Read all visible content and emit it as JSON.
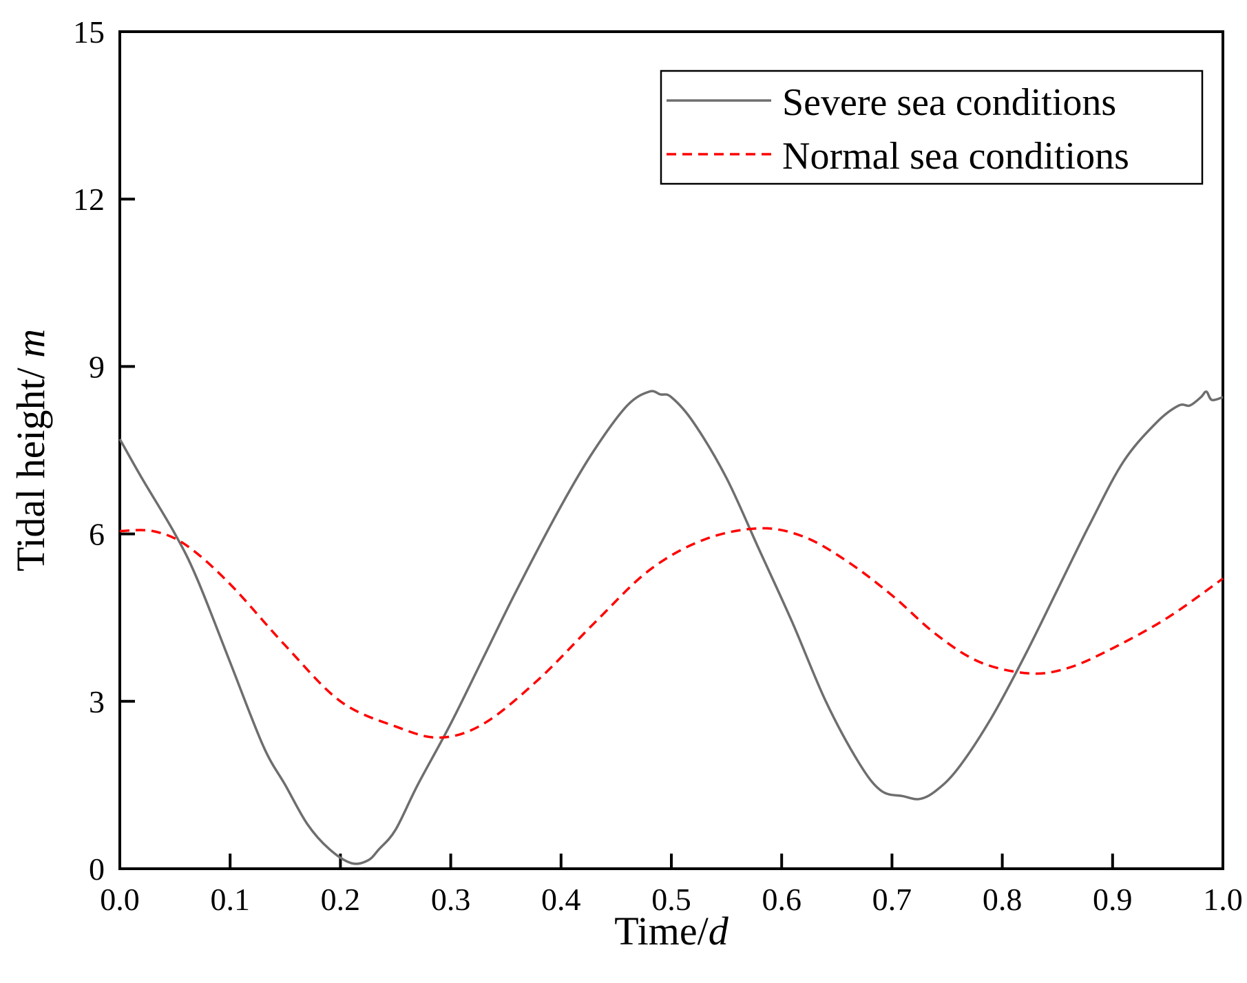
{
  "chart_data": {
    "type": "line",
    "title": "",
    "xlabel": "Time/",
    "xlabel_italic": "d",
    "ylabel": "Tidal height/ ",
    "ylabel_italic": "m",
    "xlim": [
      0.0,
      1.0
    ],
    "ylim": [
      0,
      15
    ],
    "xticks": [
      "0.0",
      "0.1",
      "0.2",
      "0.3",
      "0.4",
      "0.5",
      "0.6",
      "0.7",
      "0.8",
      "0.9",
      "1.0"
    ],
    "xtick_values": [
      0.0,
      0.1,
      0.2,
      0.3,
      0.4,
      0.5,
      0.6,
      0.7,
      0.8,
      0.9,
      1.0
    ],
    "yticks": [
      "0",
      "3",
      "6",
      "9",
      "12",
      "15"
    ],
    "ytick_values": [
      0,
      3,
      6,
      9,
      12,
      15
    ],
    "grid": false,
    "legend_position": "top-right",
    "series": [
      {
        "name": "Severe sea conditions",
        "color": "#6e6e6e",
        "style": "solid",
        "x": [
          0.0,
          0.02,
          0.05,
          0.07,
          0.1,
          0.13,
          0.15,
          0.17,
          0.19,
          0.21,
          0.225,
          0.235,
          0.25,
          0.27,
          0.3,
          0.33,
          0.36,
          0.4,
          0.43,
          0.46,
          0.48,
          0.49,
          0.5,
          0.52,
          0.55,
          0.58,
          0.61,
          0.64,
          0.67,
          0.69,
          0.71,
          0.725,
          0.74,
          0.76,
          0.79,
          0.82,
          0.85,
          0.88,
          0.91,
          0.94,
          0.96,
          0.97,
          0.98,
          0.985,
          0.99,
          1.0
        ],
        "values": [
          7.7,
          7.0,
          6.0,
          5.2,
          3.7,
          2.2,
          1.5,
          0.8,
          0.35,
          0.1,
          0.15,
          0.35,
          0.7,
          1.5,
          2.6,
          3.8,
          5.0,
          6.5,
          7.5,
          8.3,
          8.55,
          8.5,
          8.45,
          8.0,
          7.0,
          5.7,
          4.4,
          3.0,
          1.9,
          1.4,
          1.3,
          1.25,
          1.4,
          1.8,
          2.7,
          3.8,
          5.0,
          6.2,
          7.3,
          8.0,
          8.3,
          8.3,
          8.45,
          8.55,
          8.4,
          8.45
        ]
      },
      {
        "name": "Normal sea conditions",
        "color": "#ff0000",
        "style": "dashed",
        "x": [
          0.0,
          0.03,
          0.06,
          0.1,
          0.15,
          0.2,
          0.25,
          0.29,
          0.33,
          0.38,
          0.43,
          0.48,
          0.53,
          0.58,
          0.62,
          0.66,
          0.7,
          0.74,
          0.78,
          0.825,
          0.86,
          0.9,
          0.95,
          1.0
        ],
        "values": [
          6.05,
          6.05,
          5.8,
          5.1,
          4.0,
          3.0,
          2.55,
          2.35,
          2.6,
          3.4,
          4.4,
          5.35,
          5.9,
          6.1,
          5.95,
          5.5,
          4.9,
          4.2,
          3.7,
          3.5,
          3.6,
          3.95,
          4.5,
          5.2
        ]
      }
    ]
  }
}
